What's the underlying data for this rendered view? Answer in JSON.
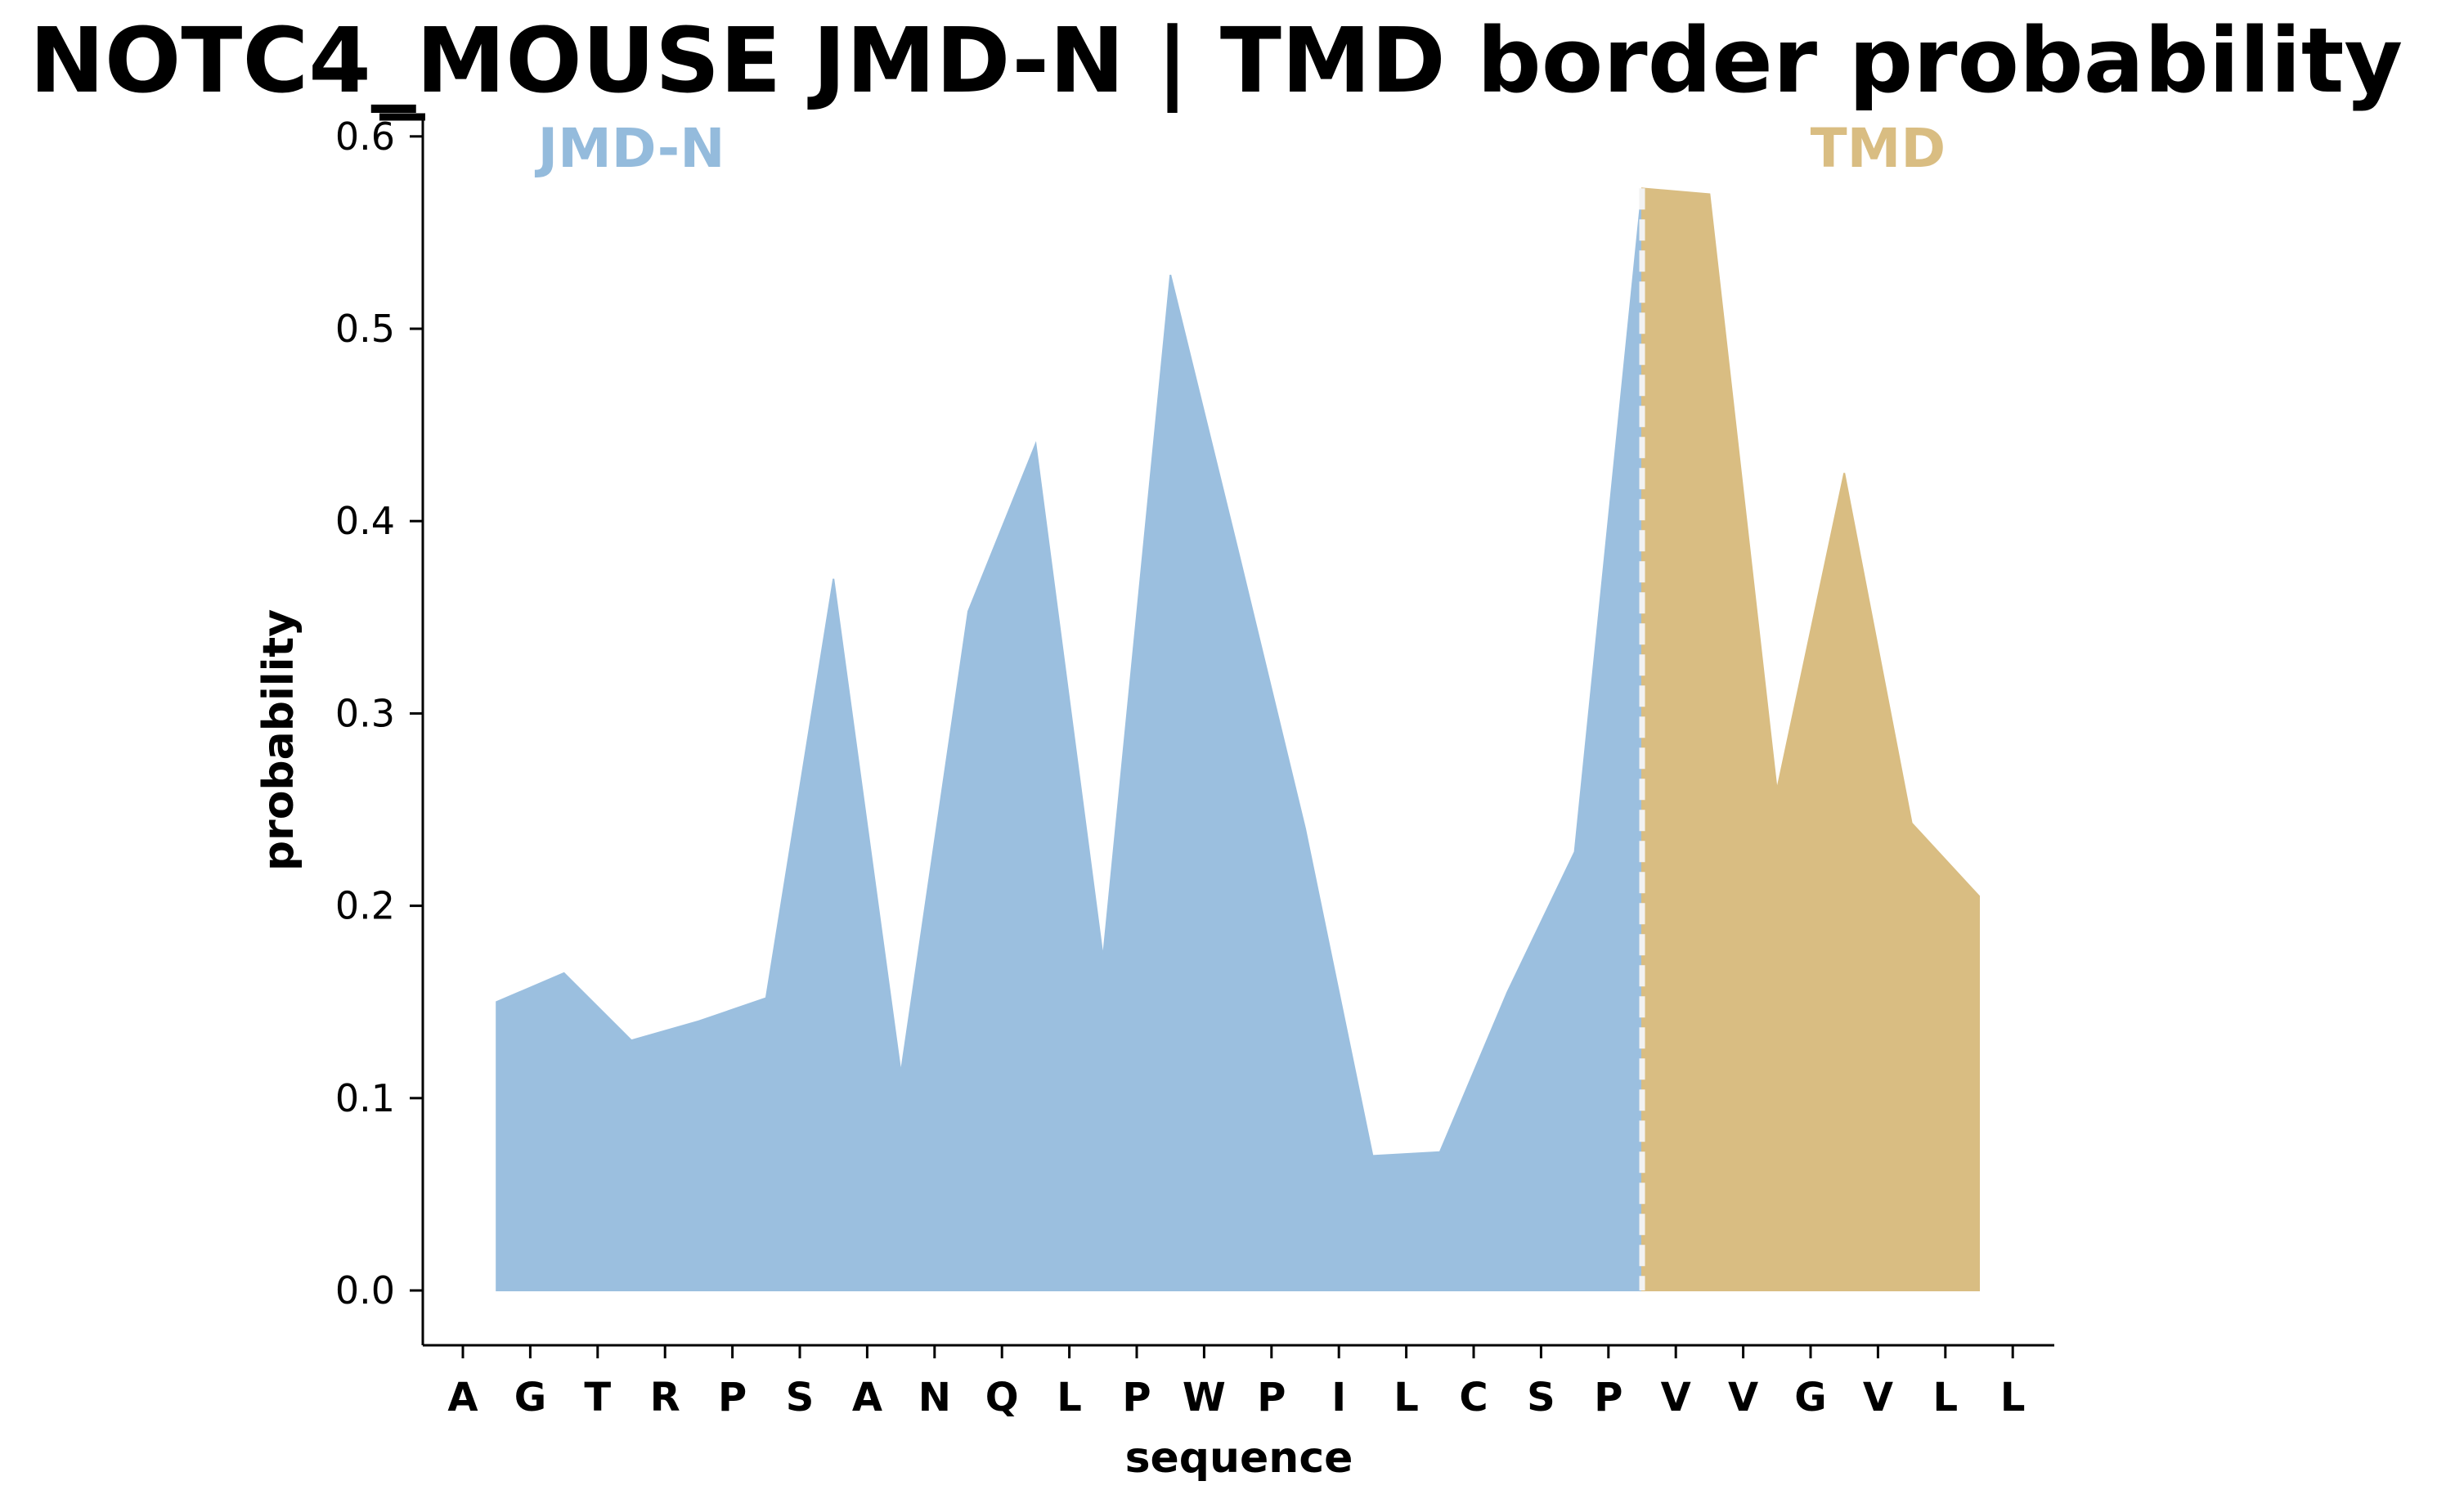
{
  "chart_data": {
    "type": "area",
    "title": "NOTC4_MOUSE JMD-N | TMD border probability",
    "xlabel": "sequence",
    "ylabel": "probability",
    "ylim": [
      -0.028,
      0.6
    ],
    "yticks": [
      "0.0",
      "0.1",
      "0.2",
      "0.3",
      "0.4",
      "0.5",
      "0.6"
    ],
    "sequence": [
      "A",
      "G",
      "T",
      "R",
      "P",
      "S",
      "A",
      "N",
      "Q",
      "L",
      "P",
      "W",
      "P",
      "I",
      "L",
      "C",
      "S",
      "P",
      "V",
      "V",
      "G",
      "V",
      "L",
      "L"
    ],
    "series": [
      {
        "name": "JMD-N",
        "color": "#9bbfdf",
        "x": [
          0.5,
          1.5,
          2.5,
          3.5,
          4.5,
          5.5,
          6.5,
          7.5,
          8.5,
          9.5,
          10.5,
          11.5,
          12.5,
          13.5,
          14.5,
          15.5,
          16.5,
          17.5
        ],
        "values": [
          0.15,
          0.165,
          0.13,
          0.14,
          0.152,
          0.37,
          0.113,
          0.353,
          0.44,
          0.173,
          0.528,
          0.385,
          0.24,
          0.07,
          0.072,
          0.155,
          0.228,
          0.573
        ]
      },
      {
        "name": "TMD",
        "color": "#d9bd82",
        "x": [
          17.5,
          18.5,
          19.5,
          20.5,
          21.5,
          22.5
        ],
        "values": [
          0.573,
          0.57,
          0.26,
          0.425,
          0.243,
          0.205
        ]
      }
    ],
    "border_x": 17.5,
    "border_color": "#f2f2f2",
    "regions": [
      {
        "label": "JMD-N",
        "color": "#94bbdc",
        "x": 2.5
      },
      {
        "label": "TMD",
        "color": "#d9bd82",
        "x": 21.0
      }
    ],
    "grid": false,
    "legend": "none"
  }
}
